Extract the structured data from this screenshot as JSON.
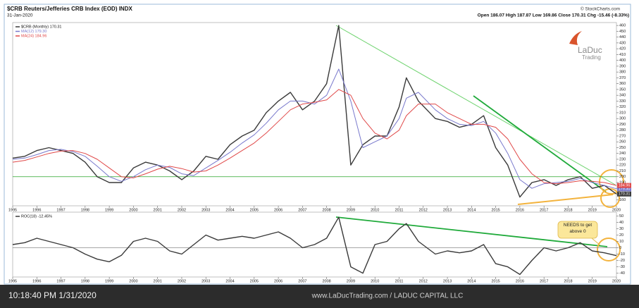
{
  "header": {
    "title": "$CRB Reuters/Jefferies CRB Index (EOD) INDX",
    "date": "31-Jan-2020",
    "quote": "Open 186.07  High 187.87  Low 169.86  Close 170.31  Chg -15.46 (-8.33%)",
    "credit": "© StockCharts.com",
    "logo": [
      "LaDuc",
      "Trading"
    ]
  },
  "footer": {
    "time": "10:18:40 PM 1/31/2020",
    "site": "www.LaDucTrading.com / LADUC CAPITAL LLC"
  },
  "chart_data": [
    {
      "type": "line",
      "x": [
        1995.0,
        1995.5,
        1996.0,
        1996.5,
        1997.0,
        1997.5,
        1998.0,
        1998.5,
        1999.0,
        1999.5,
        2000.0,
        2000.5,
        2001.0,
        2001.5,
        2002.0,
        2002.5,
        2003.0,
        2003.5,
        2004.0,
        2004.5,
        2005.0,
        2005.5,
        2006.0,
        2006.5,
        2007.0,
        2007.5,
        2008.0,
        2008.5,
        2009.0,
        2009.5,
        2010.0,
        2010.5,
        2011.0,
        2011.3,
        2011.8,
        2012.5,
        2013.0,
        2013.5,
        2014.0,
        2014.5,
        2015.0,
        2015.5,
        2016.0,
        2016.5,
        2017.0,
        2017.5,
        2018.0,
        2018.5,
        2019.0,
        2019.5,
        2020.0
      ],
      "series": [
        {
          "name": "$CRB (Monthly) 170.31",
          "color": "#3a3a3a",
          "last_label": "170.31",
          "values": [
            232,
            235,
            245,
            250,
            245,
            240,
            225,
            200,
            190,
            190,
            215,
            225,
            220,
            210,
            195,
            210,
            235,
            230,
            255,
            270,
            280,
            310,
            330,
            345,
            315,
            330,
            360,
            460,
            220,
            255,
            270,
            270,
            320,
            370,
            330,
            300,
            295,
            285,
            290,
            305,
            250,
            220,
            165,
            190,
            195,
            185,
            195,
            200,
            180,
            185,
            170.31
          ]
        },
        {
          "name": "MA(12) 179.30",
          "color": "#7878cc",
          "last_label": "179.30",
          "values": [
            230,
            232,
            238,
            245,
            247,
            243,
            235,
            218,
            200,
            192,
            200,
            212,
            220,
            216,
            205,
            202,
            215,
            228,
            242,
            258,
            272,
            292,
            315,
            330,
            330,
            325,
            340,
            385,
            330,
            250,
            260,
            270,
            300,
            335,
            345,
            315,
            300,
            290,
            288,
            295,
            275,
            240,
            195,
            180,
            188,
            190,
            192,
            197,
            190,
            185,
            179.3
          ]
        },
        {
          "name": "MA(24) 184.96",
          "color": "#e04848",
          "last_label": "184.96",
          "values": [
            225,
            228,
            234,
            240,
            244,
            245,
            240,
            230,
            215,
            200,
            198,
            205,
            213,
            218,
            214,
            208,
            210,
            220,
            232,
            245,
            258,
            275,
            295,
            315,
            325,
            328,
            332,
            350,
            340,
            300,
            275,
            265,
            280,
            305,
            325,
            325,
            310,
            300,
            290,
            290,
            285,
            265,
            230,
            205,
            190,
            188,
            190,
            193,
            192,
            190,
            184.96
          ]
        }
      ],
      "reference_line": 200,
      "reference_color": "#2aa52a",
      "xlim": [
        1995,
        2020
      ],
      "xticks": [
        1995,
        1996,
        1997,
        1998,
        1999,
        2000,
        2001,
        2002,
        2003,
        2004,
        2005,
        2006,
        2007,
        2008,
        2009,
        2010,
        2011,
        2012,
        2013,
        2014,
        2015,
        2016,
        2017,
        2018,
        2019,
        2020
      ],
      "ylim": [
        150,
        465
      ],
      "yticks": [
        160,
        170,
        180,
        190,
        200,
        210,
        220,
        230,
        240,
        250,
        260,
        270,
        280,
        290,
        300,
        310,
        320,
        330,
        340,
        350,
        360,
        370,
        380,
        390,
        400,
        410,
        420,
        430,
        440,
        450,
        460
      ]
    },
    {
      "type": "line",
      "x": [
        1995.0,
        1995.5,
        1996.0,
        1996.5,
        1997.0,
        1997.5,
        1998.0,
        1998.5,
        1999.0,
        1999.5,
        2000.0,
        2000.5,
        2001.0,
        2001.5,
        2002.0,
        2002.5,
        2003.0,
        2003.5,
        2004.0,
        2004.5,
        2005.0,
        2005.5,
        2006.0,
        2006.5,
        2007.0,
        2007.5,
        2008.0,
        2008.5,
        2009.0,
        2009.5,
        2010.0,
        2010.5,
        2011.0,
        2011.3,
        2011.8,
        2012.5,
        2013.0,
        2013.5,
        2014.0,
        2014.5,
        2015.0,
        2015.5,
        2016.0,
        2016.5,
        2017.0,
        2017.5,
        2018.0,
        2018.5,
        2019.0,
        2019.5,
        2020.0
      ],
      "series": [
        {
          "name": "ROC(18) -12.45%",
          "color": "#3a3a3a",
          "values": [
            5,
            8,
            15,
            10,
            5,
            0,
            -10,
            -18,
            -22,
            -12,
            10,
            15,
            10,
            -5,
            -10,
            5,
            20,
            12,
            15,
            18,
            15,
            20,
            25,
            15,
            0,
            5,
            15,
            48,
            -30,
            -40,
            5,
            10,
            30,
            38,
            10,
            -10,
            -5,
            -8,
            -5,
            5,
            -25,
            -30,
            -42,
            -20,
            0,
            -5,
            0,
            8,
            -5,
            -8,
            -12.45
          ]
        }
      ],
      "reference_line": 0,
      "reference_color": "#888888",
      "annotation": "NEEDS to get above 0",
      "xlim": [
        1995,
        2020
      ],
      "xticks": [
        1995,
        1996,
        1997,
        1998,
        1999,
        2000,
        2001,
        2002,
        2003,
        2004,
        2005,
        2006,
        2007,
        2008,
        2009,
        2010,
        2011,
        2012,
        2013,
        2014,
        2015,
        2016,
        2017,
        2018,
        2019,
        2020
      ],
      "ylim": [
        -46,
        56
      ],
      "yticks": [
        50,
        40,
        30,
        20,
        10,
        0,
        -10,
        -20,
        -30,
        -40
      ]
    }
  ]
}
